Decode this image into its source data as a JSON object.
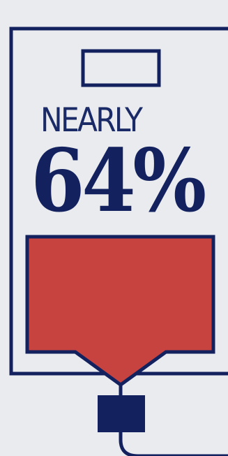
{
  "infographic": {
    "qualifier": "NEARLY",
    "value": "64%",
    "level": 0.64
  },
  "colors": {
    "navy": "#13225f",
    "fill_red": "#c74340",
    "background": "#e9ebef"
  },
  "icons": [
    "battery-outline-icon",
    "battery-terminal-icon",
    "plug-icon",
    "cable-icon"
  ]
}
